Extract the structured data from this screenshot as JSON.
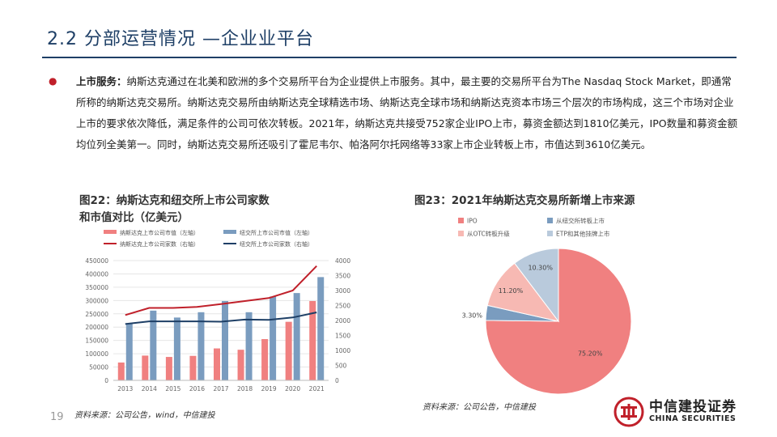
{
  "header": {
    "title": "2.2 分部运营情况 —企业业平台"
  },
  "paragraph": {
    "lead": "上市服务：",
    "body": "纳斯达克通过在北美和欧洲的多个交易所平台为企业提供上市服务。其中，最主要的交易所平台为The Nasdaq Stock Market，即通常所称的纳斯达克交易所。纳斯达克交易所由纳斯达克全球精选市场、纳斯达克全球市场和纳斯达克资本市场三个层次的市场构成，这三个市场对企业上市的要求依次降低，满足条件的公司可依次转板。2021年，纳斯达克共接受752家企业IPO上市，募资金额达到1810亿美元，IPO数量和募资金额均位列全美第一。同时，纳斯达克交易所还吸引了霍尼韦尔、帕洛阿尔托网络等33家上市企业转板上市，市值达到3610亿美元。"
  },
  "figure22": {
    "title_line1": "图22：纳斯达克和纽交所上市公司家数",
    "title_line2": "和市值对比（亿美元）",
    "source": "资料来源：公司公告，wind，中信建投"
  },
  "figure23": {
    "title": "图23：2021年纳斯达克交易所新增上市来源",
    "source": "资料来源：公司公告，中信建投"
  },
  "footer": {
    "page_number": "19",
    "logo_cn": "中信建投证券",
    "logo_en": "CHINA SECURITIES"
  },
  "colors": {
    "brand": "#1e3f66",
    "accent": "#c0202a",
    "pink": "#f08080",
    "steel": "#7a9cbf",
    "red": "#c0202a",
    "navy": "#1e3f66"
  },
  "chart_data": [
    {
      "type": "bar",
      "categories": [
        "2013",
        "2014",
        "2015",
        "2016",
        "2017",
        "2018",
        "2019",
        "2020",
        "2021"
      ],
      "series": [
        {
          "name": "纳斯达克上市公司市值（左轴）",
          "kind": "bar",
          "axis": "left",
          "values": [
            67000,
            93000,
            88000,
            92000,
            120000,
            115000,
            155000,
            220000,
            298000
          ]
        },
        {
          "name": "纽交所上市公司市值（左轴）",
          "kind": "bar",
          "axis": "left",
          "values": [
            214000,
            262000,
            236000,
            256000,
            298000,
            256000,
            315000,
            328000,
            388000
          ]
        },
        {
          "name": "纳斯达克上市公司家数（右轴）",
          "kind": "line",
          "axis": "right",
          "values": [
            2180,
            2420,
            2420,
            2450,
            2550,
            2650,
            2750,
            3000,
            3820
          ]
        },
        {
          "name": "纽交所上市公司家数（右轴）",
          "kind": "line",
          "axis": "right",
          "values": [
            1880,
            1970,
            1970,
            1970,
            1960,
            2030,
            2020,
            2100,
            2270
          ]
        }
      ],
      "y_left": {
        "min": 0,
        "max": 450000,
        "ticks": [
          "0",
          "50000",
          "100000",
          "150000",
          "200000",
          "250000",
          "300000",
          "350000",
          "400000",
          "450000"
        ]
      },
      "y_right": {
        "min": 0,
        "max": 4000,
        "ticks": [
          "0",
          "500",
          "1000",
          "1500",
          "2000",
          "2500",
          "3000",
          "3500",
          "4000"
        ]
      },
      "legend": "top"
    },
    {
      "type": "pie",
      "slices": [
        {
          "label": "IPO",
          "value": 75.2,
          "display": "75.20%",
          "color": "#f08080"
        },
        {
          "label": "从纽交所转板上市",
          "value": 3.3,
          "display": "3.30%",
          "color": "#7a9cbf"
        },
        {
          "label": "从OTC转板升级",
          "value": 11.2,
          "display": "11.20%",
          "color": "#f7b9b3"
        },
        {
          "label": "ETP和其他挂牌上市",
          "value": 10.3,
          "display": "10.30%",
          "color": "#b9cadc"
        }
      ],
      "legend": "top"
    }
  ]
}
